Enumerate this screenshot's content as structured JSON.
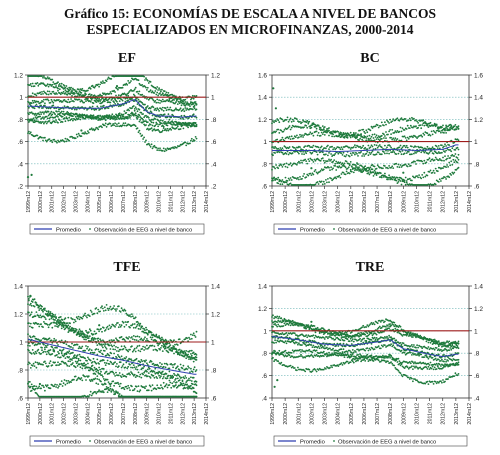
{
  "title": {
    "line1": "Gráfico 15: ECONOMÍAS DE ESCALA A NIVEL DE BANCOS",
    "line2": "ESPECIALIZADOS EN MICROFINANZAS, 2000-2014"
  },
  "colors": {
    "promedio": "#2f3fb0",
    "observacion": "#1e7a3c",
    "reference": "#9e1b1b",
    "grid": "#6fb7b7",
    "axis": "#333333"
  },
  "legend": {
    "promedio": "Promedio",
    "observacion": "Observación de EEG a nivel de banco"
  },
  "xticks": [
    "1999m12",
    "2000m12",
    "2001m12",
    "2002m12",
    "2003m12",
    "2004m12",
    "2005m12",
    "2006m12",
    "2007m12",
    "2008m12",
    "2009m12",
    "2010m12",
    "2011m12",
    "2012m12",
    "2013m12",
    "2014m12"
  ],
  "chart_data": [
    {
      "title": "EF",
      "type": "scatter",
      "ylim": [
        0.2,
        1.2
      ],
      "yticks": [
        "1.2",
        "1",
        ".8",
        ".6",
        ".4",
        ".2"
      ],
      "ytick_values": [
        1.2,
        1.0,
        0.8,
        0.6,
        0.4,
        0.2
      ],
      "reference_line": 1.0,
      "n_banks": 9,
      "bank_spread": 0.05,
      "average_label": "Promedio",
      "observations_label": "Observación de EEG a nivel de banco",
      "average_line": [
        [
          0,
          0.92
        ],
        [
          2,
          0.91
        ],
        [
          4,
          0.9
        ],
        [
          6,
          0.9
        ],
        [
          8,
          0.94
        ],
        [
          9,
          0.98
        ],
        [
          10,
          0.87
        ],
        [
          11,
          0.83
        ],
        [
          12,
          0.83
        ],
        [
          13,
          0.82
        ],
        [
          14,
          0.83
        ]
      ],
      "outliers": [
        [
          0,
          0.28
        ],
        [
          0.3,
          0.3
        ],
        [
          7.5,
          1.1
        ],
        [
          4.5,
          0.7
        ]
      ]
    },
    {
      "title": "BC",
      "type": "scatter",
      "ylim": [
        0.6,
        1.6
      ],
      "yticks": [
        "1.6",
        "1.4",
        "1.2",
        "1",
        ".8",
        ".6"
      ],
      "ytick_values": [
        1.6,
        1.4,
        1.2,
        1.0,
        0.8,
        0.6
      ],
      "reference_line": 1.0,
      "n_banks": 8,
      "bank_spread": 0.06,
      "average_label": "Promedio",
      "observations_label": "Observación de EEG a nivel de banco",
      "average_line": [
        [
          0,
          0.92
        ],
        [
          3,
          0.92
        ],
        [
          5,
          0.91
        ],
        [
          7,
          0.92
        ],
        [
          9,
          0.93
        ],
        [
          11,
          0.92
        ],
        [
          13,
          0.93
        ],
        [
          14,
          0.97
        ]
      ],
      "outliers": [
        [
          0.1,
          1.48
        ],
        [
          0.3,
          1.3
        ],
        [
          3,
          0.76
        ],
        [
          10,
          0.72
        ]
      ]
    },
    {
      "title": "TFE",
      "type": "scatter",
      "ylim": [
        0.6,
        1.4
      ],
      "yticks": [
        "1.4",
        "1.2",
        "1",
        ".8",
        ".6"
      ],
      "ytick_values": [
        1.4,
        1.2,
        1.0,
        0.8,
        0.6
      ],
      "reference_line": 1.0,
      "n_banks": 10,
      "bank_spread": 0.06,
      "average_label": "Promedio",
      "observations_label": "Observación de EEG a nivel de banco",
      "average_line": [
        [
          0,
          1.02
        ],
        [
          2,
          0.98
        ],
        [
          4,
          0.94
        ],
        [
          6,
          0.9
        ],
        [
          8,
          0.87
        ],
        [
          10,
          0.83
        ],
        [
          12,
          0.8
        ],
        [
          14,
          0.77
        ]
      ],
      "outliers": [
        [
          0.2,
          1.33
        ],
        [
          6,
          1.12
        ],
        [
          1,
          0.7
        ]
      ]
    },
    {
      "title": "TRE",
      "type": "scatter",
      "ylim": [
        0.4,
        1.4
      ],
      "yticks": [
        "1.4",
        "1.2",
        "1",
        ".8",
        ".6",
        ".4"
      ],
      "ytick_values": [
        1.4,
        1.2,
        1.0,
        0.8,
        0.6,
        0.4
      ],
      "reference_line": 1.0,
      "n_banks": 9,
      "bank_spread": 0.04,
      "average_label": "Promedio",
      "observations_label": "Observación de EEG a nivel de banco",
      "average_line": [
        [
          0,
          0.95
        ],
        [
          2,
          0.92
        ],
        [
          4,
          0.88
        ],
        [
          6,
          0.87
        ],
        [
          8,
          0.9
        ],
        [
          9,
          0.92
        ],
        [
          10,
          0.84
        ],
        [
          12,
          0.79
        ],
        [
          13,
          0.77
        ],
        [
          14,
          0.79
        ]
      ],
      "outliers": [
        [
          0.2,
          0.5
        ],
        [
          0.4,
          0.56
        ],
        [
          3,
          1.08
        ],
        [
          9,
          1.04
        ]
      ]
    }
  ]
}
